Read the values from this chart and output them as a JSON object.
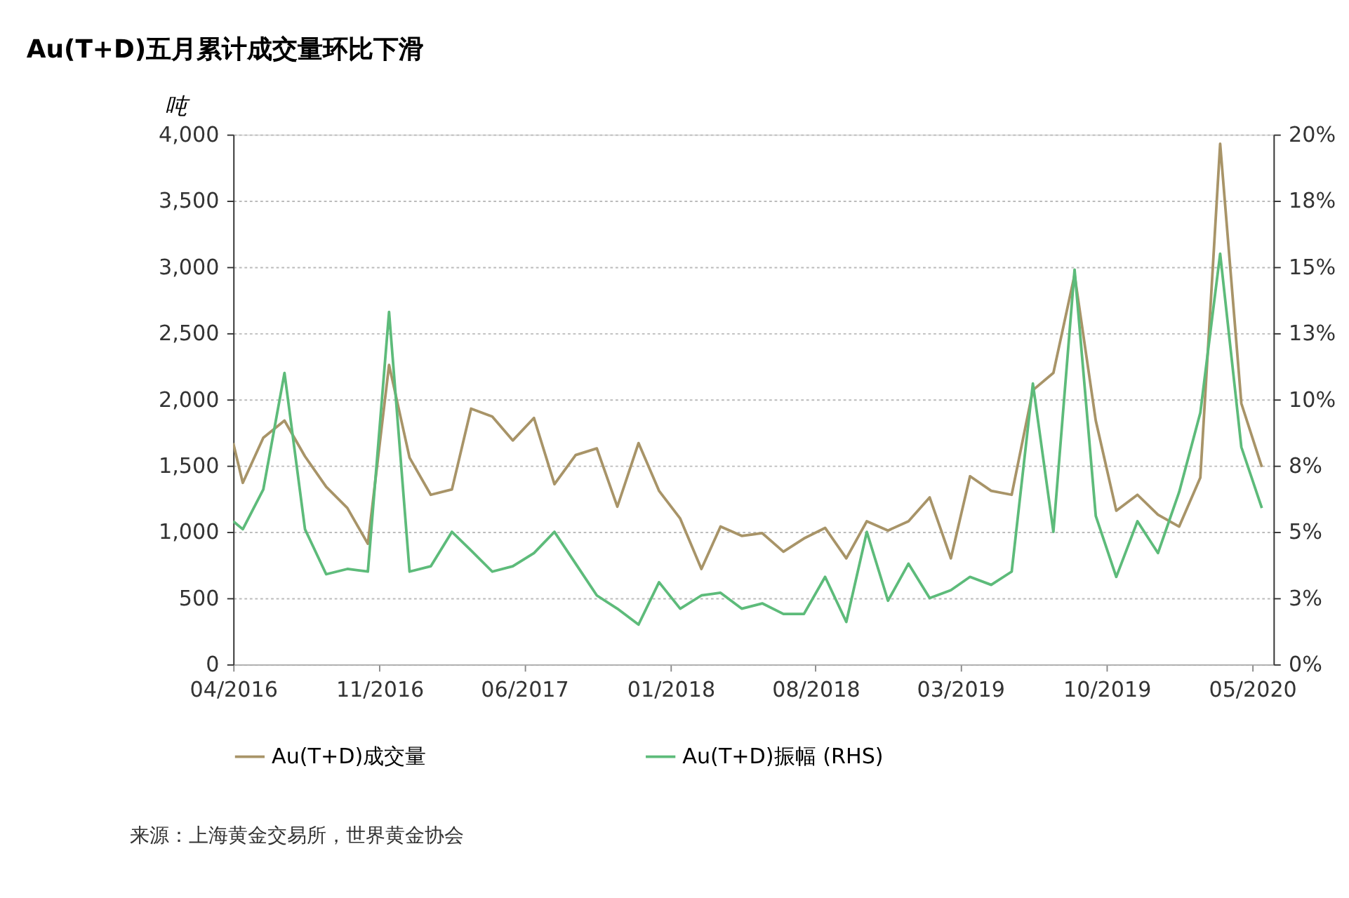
{
  "chart_data": {
    "type": "line",
    "title": "Au(T+D)五月累计成交量环比下滑",
    "ylabel": "吨",
    "x": [
      "2016-04-01",
      "2016-04-15",
      "2016-05-15",
      "2016-06-15",
      "2016-07-15",
      "2016-08-15",
      "2016-09-15",
      "2016-10-15",
      "2016-11-15",
      "2016-12-15",
      "2017-01-15",
      "2017-02-15",
      "2017-03-15",
      "2017-04-15",
      "2017-05-15",
      "2017-06-15",
      "2017-07-15",
      "2017-08-15",
      "2017-09-15",
      "2017-10-15",
      "2017-11-15",
      "2017-12-15",
      "2018-01-15",
      "2018-02-15",
      "2018-03-15",
      "2018-04-15",
      "2018-05-15",
      "2018-06-15",
      "2018-07-15",
      "2018-08-15",
      "2018-09-15",
      "2018-10-15",
      "2018-11-15",
      "2018-12-15",
      "2019-01-15",
      "2019-02-15",
      "2019-03-15",
      "2019-04-15",
      "2019-05-15",
      "2019-06-15",
      "2019-07-15",
      "2019-08-15",
      "2019-09-15",
      "2019-10-15",
      "2019-11-15",
      "2019-12-15",
      "2020-01-15",
      "2020-02-15",
      "2020-03-15",
      "2020-04-15",
      "2020-05-15"
    ],
    "series": [
      {
        "name": "Au(T+D)成交量",
        "color": "#a89468",
        "values": [
          1670,
          1370,
          1710,
          1840,
          1570,
          1340,
          1180,
          910,
          2260,
          1560,
          1280,
          1320,
          1930,
          1870,
          1690,
          1860,
          1360,
          1580,
          1630,
          1190,
          1670,
          1310,
          1100,
          720,
          1040,
          970,
          990,
          850,
          950,
          1030,
          800,
          1080,
          1010,
          1080,
          1260,
          800,
          1420,
          1310,
          1280,
          2070,
          2200,
          2940,
          1840,
          1160,
          1280,
          1130,
          1040,
          1410,
          3930,
          1970,
          1490
        ]
      },
      {
        "name": "Au(T+D)振幅 (RHS)",
        "color": "#5dbb7a",
        "axis": "y2",
        "values": [
          5.4,
          5.1,
          6.6,
          11.0,
          5.1,
          3.4,
          3.6,
          3.5,
          13.3,
          3.5,
          3.7,
          5.0,
          4.3,
          3.5,
          3.7,
          4.2,
          5.0,
          3.8,
          2.6,
          2.1,
          1.5,
          3.1,
          2.1,
          2.6,
          2.7,
          2.1,
          2.3,
          1.9,
          1.9,
          3.3,
          1.6,
          5.0,
          2.4,
          3.8,
          2.5,
          2.8,
          3.3,
          3.0,
          3.5,
          10.6,
          5.0,
          14.9,
          5.6,
          3.3,
          5.4,
          4.2,
          6.5,
          9.5,
          15.5,
          8.2,
          5.9
        ]
      }
    ],
    "xlim": [
      "2016-04-01",
      "2020-06-01"
    ],
    "xticks": [
      {
        "value": "2016-04-01",
        "label": "04/2016"
      },
      {
        "value": "2016-11-01",
        "label": "11/2016"
      },
      {
        "value": "2017-06-01",
        "label": "06/2017"
      },
      {
        "value": "2018-01-01",
        "label": "01/2018"
      },
      {
        "value": "2018-08-01",
        "label": "08/2018"
      },
      {
        "value": "2019-03-01",
        "label": "03/2019"
      },
      {
        "value": "2019-10-01",
        "label": "10/2019"
      },
      {
        "value": "2020-05-01",
        "label": "05/2020"
      }
    ],
    "ylim": [
      0,
      4000
    ],
    "yticks": [
      {
        "value": 0,
        "label": "0"
      },
      {
        "value": 500,
        "label": "500"
      },
      {
        "value": 1000,
        "label": "1,000"
      },
      {
        "value": 1500,
        "label": "1,500"
      },
      {
        "value": 2000,
        "label": "2,000"
      },
      {
        "value": 2500,
        "label": "2,500"
      },
      {
        "value": 3000,
        "label": "3,000"
      },
      {
        "value": 3500,
        "label": "3,500"
      },
      {
        "value": 4000,
        "label": "4,000"
      }
    ],
    "y2lim": [
      0,
      20
    ],
    "y2ticks": [
      {
        "value": 0,
        "label": "0%"
      },
      {
        "value": 2.5,
        "label": "3%"
      },
      {
        "value": 5,
        "label": "5%"
      },
      {
        "value": 7.5,
        "label": "8%"
      },
      {
        "value": 10,
        "label": "10%"
      },
      {
        "value": 12.5,
        "label": "13%"
      },
      {
        "value": 15,
        "label": "15%"
      },
      {
        "value": 17.5,
        "label": "18%"
      },
      {
        "value": 20,
        "label": "20%"
      }
    ],
    "grid": "y",
    "legend": "bottom",
    "line_style": "solid",
    "annotations": [
      "来源：上海黄金交易所，世界黄金协会"
    ]
  }
}
